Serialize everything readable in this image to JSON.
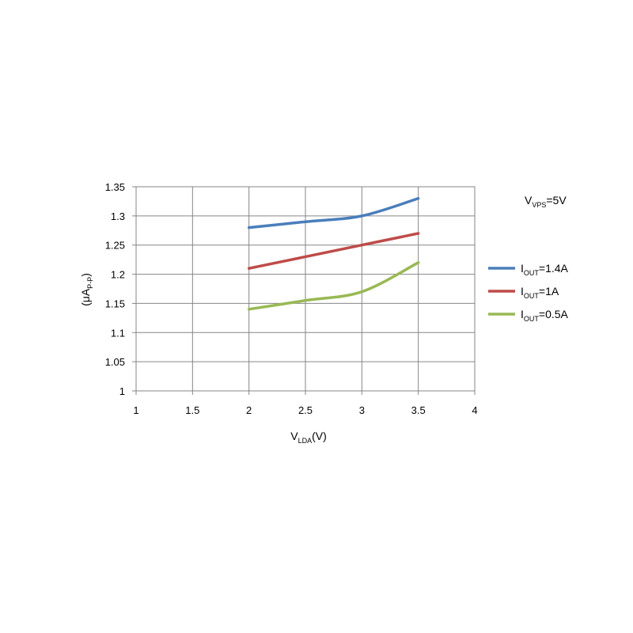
{
  "chart_data": {
    "type": "line",
    "x_label": [
      "V",
      "LDA",
      "(V)"
    ],
    "y_label": [
      "(μA",
      "P-P",
      ")"
    ],
    "annotation": [
      "V",
      "VPS",
      "=5V"
    ],
    "x": [
      2,
      2.5,
      3,
      3.5
    ],
    "series": [
      {
        "name": [
          "I",
          "OUT",
          "=1.4A"
        ],
        "color": "#4a7ebb",
        "values": [
          1.28,
          1.29,
          1.3,
          1.33
        ]
      },
      {
        "name": [
          "I",
          "OUT",
          "=1A"
        ],
        "color": "#be4b48",
        "values": [
          1.21,
          1.23,
          1.25,
          1.27
        ]
      },
      {
        "name": [
          "I",
          "OUT",
          "=0.5A"
        ],
        "color": "#98b954",
        "values": [
          1.14,
          1.155,
          1.17,
          1.22
        ]
      }
    ],
    "xlim": [
      1,
      4
    ],
    "xticks": [
      1,
      1.5,
      2,
      2.5,
      3,
      3.5,
      4
    ],
    "ylim": [
      1,
      1.35
    ],
    "yticks": [
      1,
      1.05,
      1.1,
      1.15,
      1.2,
      1.25,
      1.3,
      1.35
    ],
    "grid": true,
    "legend": "right"
  }
}
